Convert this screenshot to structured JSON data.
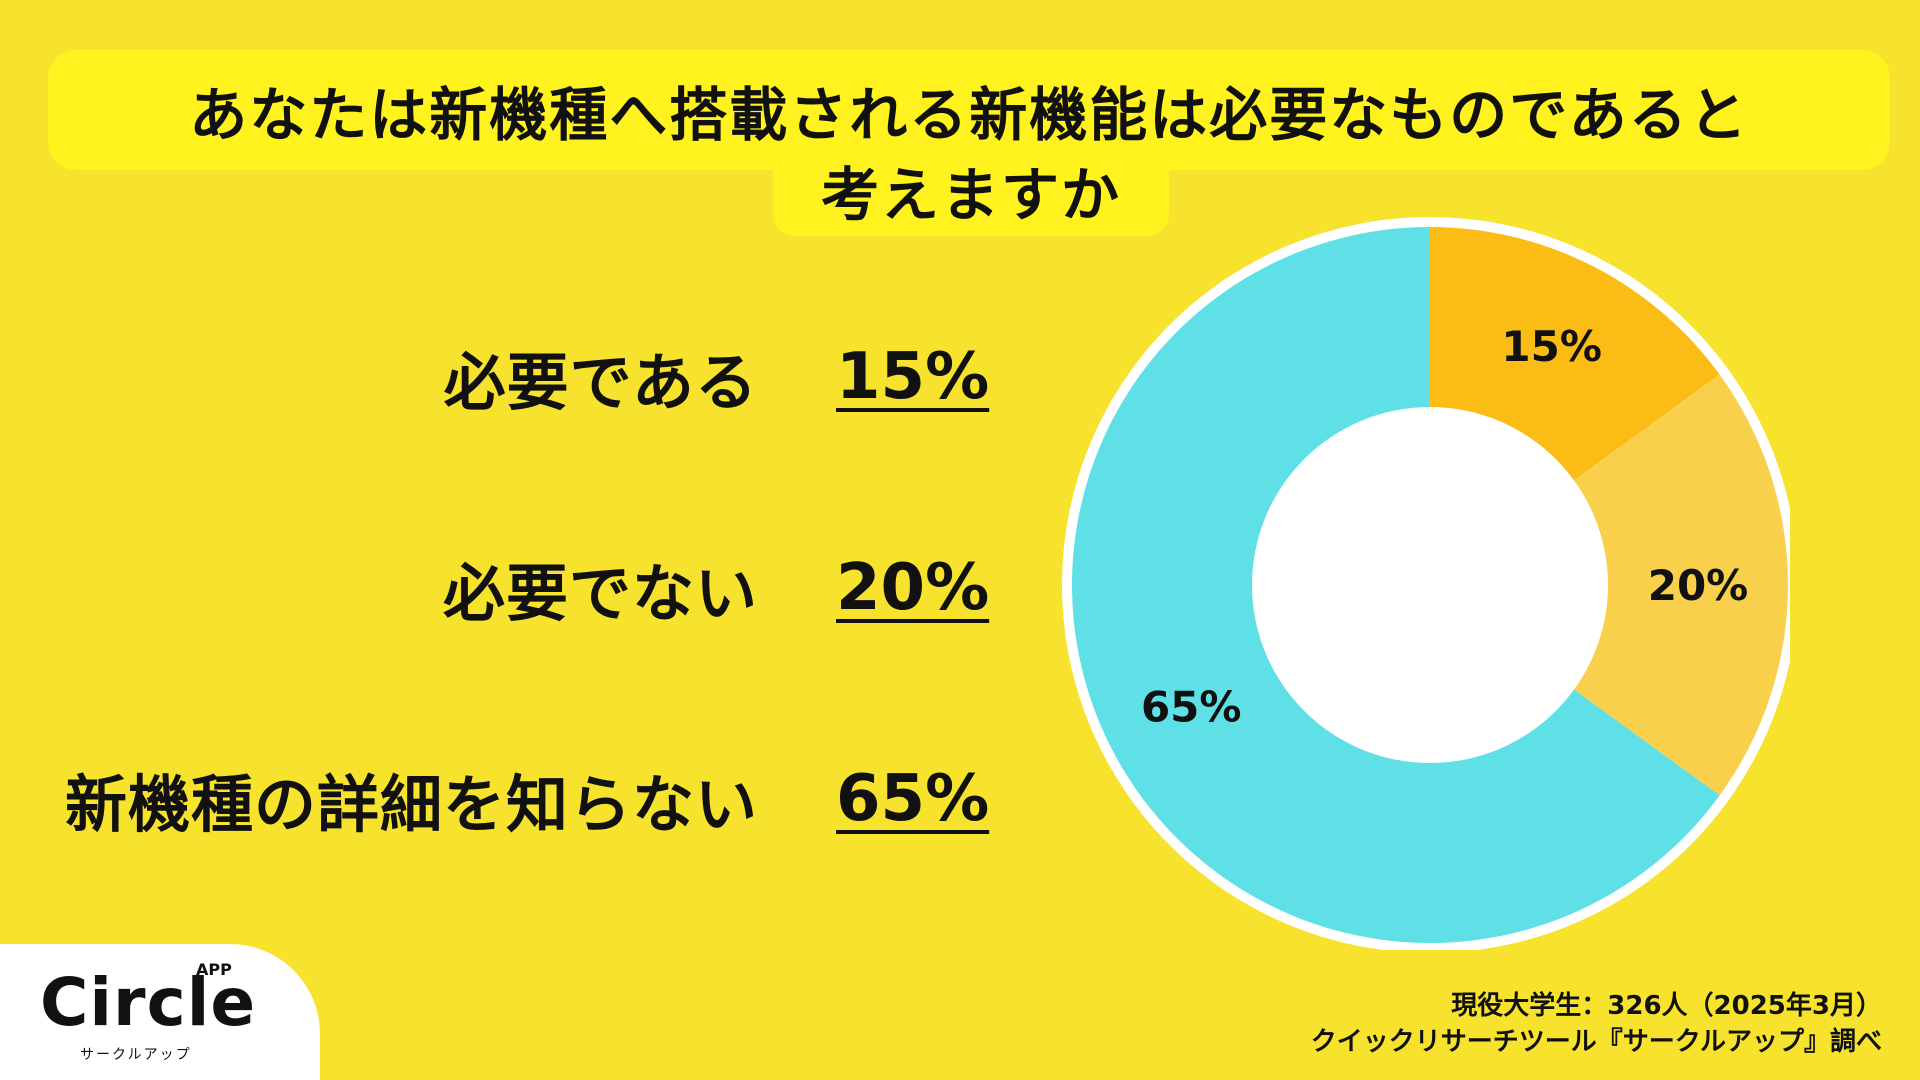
{
  "title": {
    "line1": "あなたは新機種へ搭載される新機能は必要なものであると",
    "line2": "考えますか"
  },
  "rows": [
    {
      "label": "必要である",
      "pct": "15%"
    },
    {
      "label": "必要でない",
      "pct": "20%"
    },
    {
      "label": "新機種の詳細を知らない",
      "pct": "65%"
    }
  ],
  "chart_data": {
    "type": "pie",
    "donut": true,
    "categories": [
      "必要である",
      "必要でない",
      "新機種の詳細を知らない"
    ],
    "values": [
      15,
      20,
      65
    ],
    "labels": [
      "15%",
      "20%",
      "65%"
    ],
    "colors": [
      "#fbbd15",
      "#f8d04b",
      "#5ee0e6"
    ],
    "start": "top, clockwise"
  },
  "logo": {
    "name": "Circle",
    "badge": "APP",
    "sub": "サークルアップ"
  },
  "source": {
    "line1": "現役大学生：326人（2025年3月）",
    "line2": "クイックリサーチツール『サークルアップ』調べ"
  }
}
